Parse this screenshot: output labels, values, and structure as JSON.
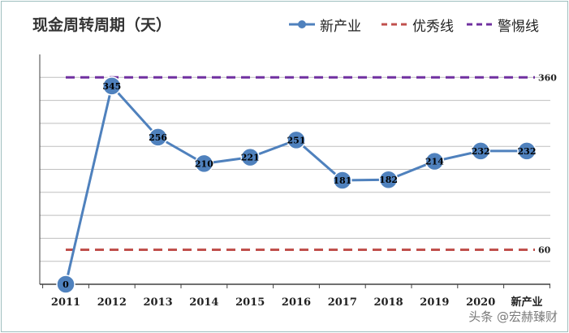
{
  "title": "现金周转周期（天）",
  "legend": {
    "series": "新产业",
    "excellent": "优秀线",
    "warning": "警惕线"
  },
  "watermark": "头条 @宏赫臻财",
  "colors": {
    "series": "#4f81bd",
    "excellent": "#c0504d",
    "warning": "#7030a0",
    "grid": "#bfbfbf",
    "axis": "#404040"
  },
  "chart_data": {
    "type": "line",
    "title": "现金周转周期（天）",
    "categories": [
      "2011",
      "2012",
      "2013",
      "2014",
      "2015",
      "2016",
      "2017",
      "2018",
      "2019",
      "2020",
      "新产业"
    ],
    "series": [
      {
        "name": "新产业",
        "values": [
          0,
          345,
          256,
          210,
          221,
          251,
          181,
          182,
          214,
          232,
          232
        ]
      },
      {
        "name": "优秀线",
        "values": [
          60,
          60,
          60,
          60,
          60,
          60,
          60,
          60,
          60,
          60,
          60
        ],
        "label": "60"
      },
      {
        "name": "警惕线",
        "values": [
          360,
          360,
          360,
          360,
          360,
          360,
          360,
          360,
          360,
          360,
          360
        ],
        "label": "360"
      }
    ],
    "ylim": [
      0,
      400
    ],
    "grid": true,
    "legend_position": "top-right",
    "y_tick_labels": false
  }
}
